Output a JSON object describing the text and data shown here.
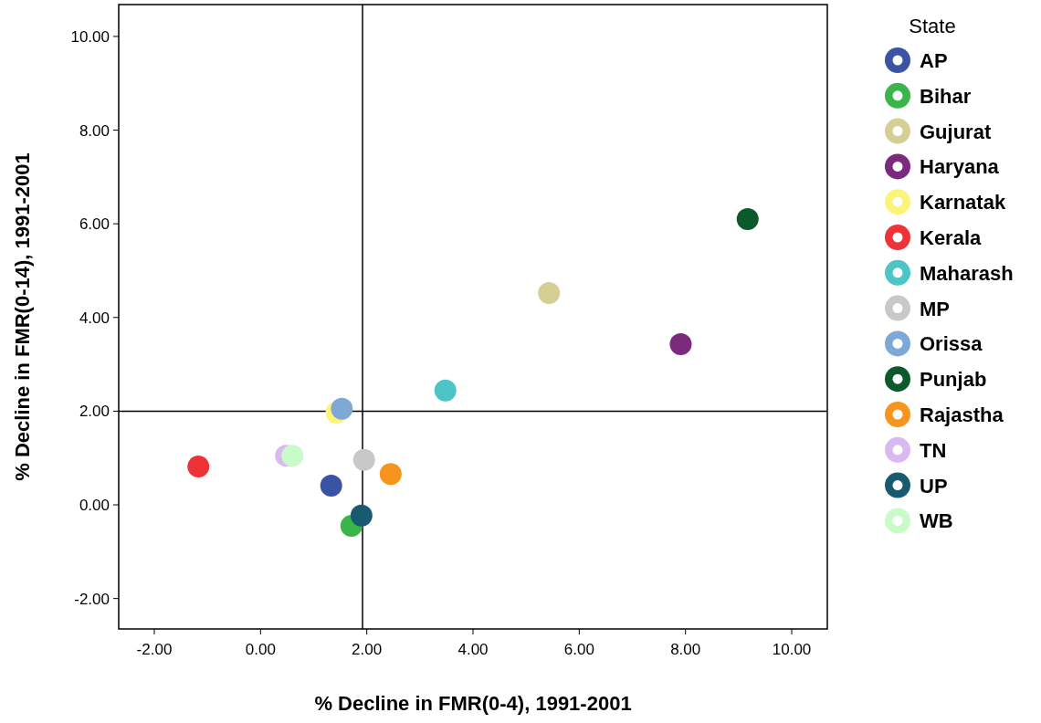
{
  "chart_data": {
    "type": "scatter",
    "xlabel": "% Decline in FMR(0-4), 1991-2001",
    "ylabel": "% Decline in FMR(0-14), 1991-2001",
    "legend_title": "State",
    "legend": "right",
    "grid": false,
    "marker": "circle",
    "xlim": [
      -2.67,
      10.67
    ],
    "ylim": [
      -2.65,
      10.68
    ],
    "xticks": [
      {
        "value": -2,
        "label": "-2.00"
      },
      {
        "value": 0,
        "label": "0.00"
      },
      {
        "value": 2,
        "label": "2.00"
      },
      {
        "value": 4,
        "label": "4.00"
      },
      {
        "value": 6,
        "label": "6.00"
      },
      {
        "value": 8,
        "label": "8.00"
      },
      {
        "value": 10,
        "label": "10.00"
      }
    ],
    "yticks": [
      {
        "value": -2,
        "label": "-2.00"
      },
      {
        "value": 0,
        "label": "0.00"
      },
      {
        "value": 2,
        "label": "2.00"
      },
      {
        "value": 4,
        "label": "4.00"
      },
      {
        "value": 6,
        "label": "6.00"
      },
      {
        "value": 8,
        "label": "8.00"
      },
      {
        "value": 10,
        "label": "10.00"
      }
    ],
    "ref_lines": [
      {
        "axis": "x",
        "value": 1.92,
        "color": "#000000"
      },
      {
        "axis": "y",
        "value": 2.0,
        "color": "#000000"
      }
    ],
    "series": [
      {
        "name": "AP",
        "color": "#3a53a4",
        "x": [
          1.33
        ],
        "values": [
          0.41
        ]
      },
      {
        "name": "Bihar",
        "color": "#3ab54a",
        "x": [
          1.71
        ],
        "values": [
          -0.45
        ]
      },
      {
        "name": "Gujurat",
        "color": "#d5ce95",
        "x": [
          5.43
        ],
        "values": [
          4.52
        ]
      },
      {
        "name": "Haryana",
        "color": "#7b2a7e",
        "x": [
          7.91
        ],
        "values": [
          3.43
        ]
      },
      {
        "name": "Karnatak",
        "color": "#fbf476",
        "x": [
          1.43
        ],
        "values": [
          1.97
        ]
      },
      {
        "name": "Kerala",
        "color": "#ee3237",
        "x": [
          -1.17
        ],
        "values": [
          0.82
        ]
      },
      {
        "name": "Maharash",
        "color": "#4dc5c6",
        "x": [
          3.48
        ],
        "values": [
          2.44
        ]
      },
      {
        "name": "MP",
        "color": "#c8c8c8",
        "x": [
          1.95
        ],
        "values": [
          0.96
        ]
      },
      {
        "name": "Orissa",
        "color": "#7ea9d6",
        "x": [
          1.53
        ],
        "values": [
          2.05
        ]
      },
      {
        "name": "Punjab",
        "color": "#0b5a2c",
        "x": [
          9.17
        ],
        "values": [
          6.1
        ]
      },
      {
        "name": "Rajastha",
        "color": "#f7941d",
        "x": [
          2.45
        ],
        "values": [
          0.66
        ]
      },
      {
        "name": "TN",
        "color": "#d9b9f0",
        "x": [
          0.48
        ],
        "values": [
          1.05
        ]
      },
      {
        "name": "UP",
        "color": "#1a5a70",
        "x": [
          1.9
        ],
        "values": [
          -0.23
        ]
      },
      {
        "name": "WB",
        "color": "#c8fbc8",
        "x": [
          0.6
        ],
        "values": [
          1.05
        ]
      }
    ]
  }
}
